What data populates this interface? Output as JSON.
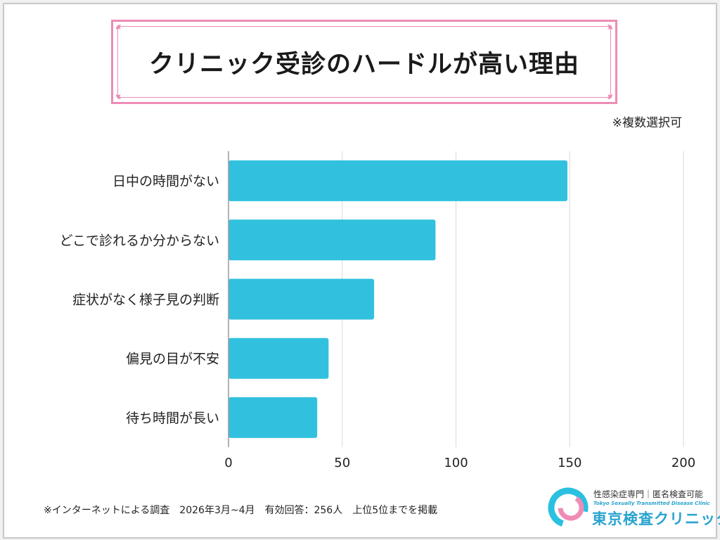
{
  "title": "クリニック受診のハードルが高い理由",
  "note": "※複数選択可",
  "footer": "※インターネットによる調査　2026年3月~4月　有効回答：256人　上位5位までを掲載",
  "logo": {
    "subtitle": "性感染症専門｜匿名検査可能",
    "english": "Tokyo Sexually Transmitted Disease Clinic",
    "name": "東京検査クリニック"
  },
  "colors": {
    "bar": "#31c1de",
    "accent": "#ee8cb6",
    "grid": "#d9d9d9",
    "axis": "#999999"
  },
  "chart_data": {
    "type": "bar",
    "orientation": "horizontal",
    "categories": [
      "日中の時間がない",
      "どこで診れるか分からない",
      "症状がなく様子見の判断",
      "偏見の目が不安",
      "待ち時間が長い"
    ],
    "values": [
      149,
      91,
      64,
      44,
      39
    ],
    "xlim": [
      0,
      200
    ],
    "xticks": [
      "0",
      "50",
      "100",
      "150",
      "200"
    ],
    "grid": true
  }
}
